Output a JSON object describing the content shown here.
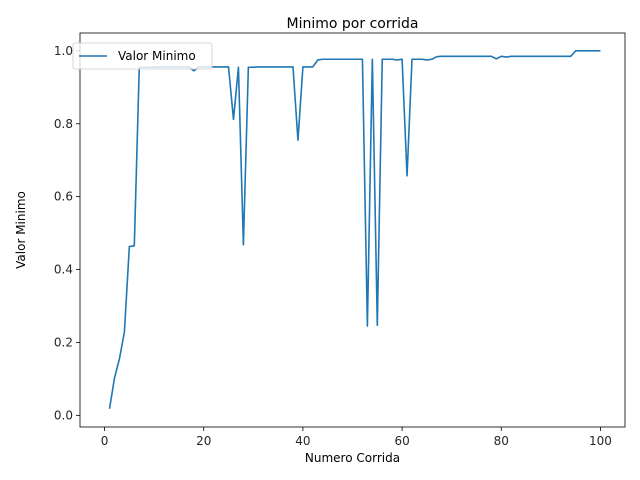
{
  "chart_data": {
    "type": "line",
    "title": "Minimo por corrida",
    "xlabel": "Numero Corrida",
    "ylabel": "Valor Minimo",
    "xlim": [
      -4.95,
      104.95
    ],
    "ylim": [
      -0.032,
      1.049
    ],
    "x_ticks": [
      0,
      20,
      40,
      60,
      80,
      100
    ],
    "y_ticks": [
      0.0,
      0.2,
      0.4,
      0.6,
      0.8,
      1.0
    ],
    "x_tick_labels": [
      "0",
      "20",
      "40",
      "60",
      "80",
      "100"
    ],
    "y_tick_labels": [
      "0.0",
      "0.2",
      "0.4",
      "0.6",
      "0.8",
      "1.0"
    ],
    "grid": false,
    "legend_position": "top-left",
    "series": [
      {
        "name": "Valor Minimo",
        "color": "#1f77b4",
        "x": [
          1,
          2,
          3,
          4,
          5,
          6,
          7,
          8,
          9,
          10,
          11,
          12,
          13,
          14,
          15,
          16,
          17,
          18,
          19,
          20,
          21,
          22,
          23,
          24,
          25,
          26,
          27,
          28,
          29,
          30,
          31,
          32,
          33,
          34,
          35,
          36,
          37,
          38,
          39,
          40,
          41,
          42,
          43,
          44,
          45,
          46,
          47,
          48,
          49,
          50,
          51,
          52,
          53,
          54,
          55,
          56,
          57,
          58,
          59,
          60,
          61,
          62,
          63,
          64,
          65,
          66,
          67,
          68,
          69,
          70,
          71,
          72,
          73,
          74,
          75,
          76,
          77,
          78,
          79,
          80,
          81,
          82,
          83,
          84,
          85,
          86,
          87,
          88,
          89,
          90,
          91,
          92,
          93,
          94,
          95,
          96,
          97,
          98,
          99,
          100
        ],
        "values": [
          0.018,
          0.102,
          0.155,
          0.228,
          0.463,
          0.465,
          0.955,
          0.955,
          0.955,
          0.955,
          0.956,
          0.956,
          0.956,
          0.956,
          0.956,
          0.956,
          0.956,
          0.945,
          0.956,
          0.956,
          0.956,
          0.956,
          0.956,
          0.956,
          0.956,
          0.812,
          0.955,
          0.468,
          0.955,
          0.955,
          0.956,
          0.956,
          0.956,
          0.956,
          0.956,
          0.956,
          0.956,
          0.956,
          0.755,
          0.956,
          0.956,
          0.956,
          0.975,
          0.977,
          0.977,
          0.977,
          0.977,
          0.977,
          0.977,
          0.977,
          0.977,
          0.977,
          0.245,
          0.977,
          0.247,
          0.977,
          0.977,
          0.977,
          0.975,
          0.977,
          0.657,
          0.977,
          0.977,
          0.977,
          0.975,
          0.977,
          0.984,
          0.985,
          0.985,
          0.985,
          0.985,
          0.985,
          0.985,
          0.985,
          0.985,
          0.985,
          0.985,
          0.985,
          0.978,
          0.985,
          0.983,
          0.985,
          0.985,
          0.985,
          0.985,
          0.985,
          0.985,
          0.985,
          0.985,
          0.985,
          0.985,
          0.985,
          0.985,
          0.985,
          1.0,
          1.0,
          1.0,
          1.0,
          1.0,
          1.0
        ]
      }
    ]
  }
}
